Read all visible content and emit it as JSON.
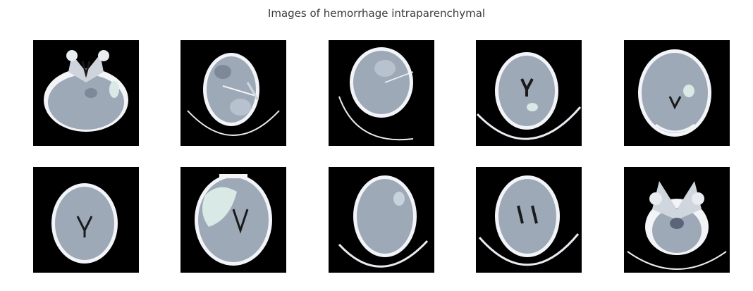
{
  "figure": {
    "title": "Images of hemorrhage intraparenchymal"
  },
  "colors": {
    "background": "#ffffff",
    "title": "#3a3a3a",
    "tile_bg": "#000000",
    "brain": "#9ea9b8",
    "brain_dark": "#5c6577",
    "skull": "#f2f4f7",
    "hemorrhage": "#d8e9e6"
  },
  "images": [
    {
      "name": "ct-scan-1"
    },
    {
      "name": "ct-scan-2"
    },
    {
      "name": "ct-scan-3"
    },
    {
      "name": "ct-scan-4"
    },
    {
      "name": "ct-scan-5"
    },
    {
      "name": "ct-scan-6"
    },
    {
      "name": "ct-scan-7"
    },
    {
      "name": "ct-scan-8"
    },
    {
      "name": "ct-scan-9"
    },
    {
      "name": "ct-scan-10"
    }
  ]
}
